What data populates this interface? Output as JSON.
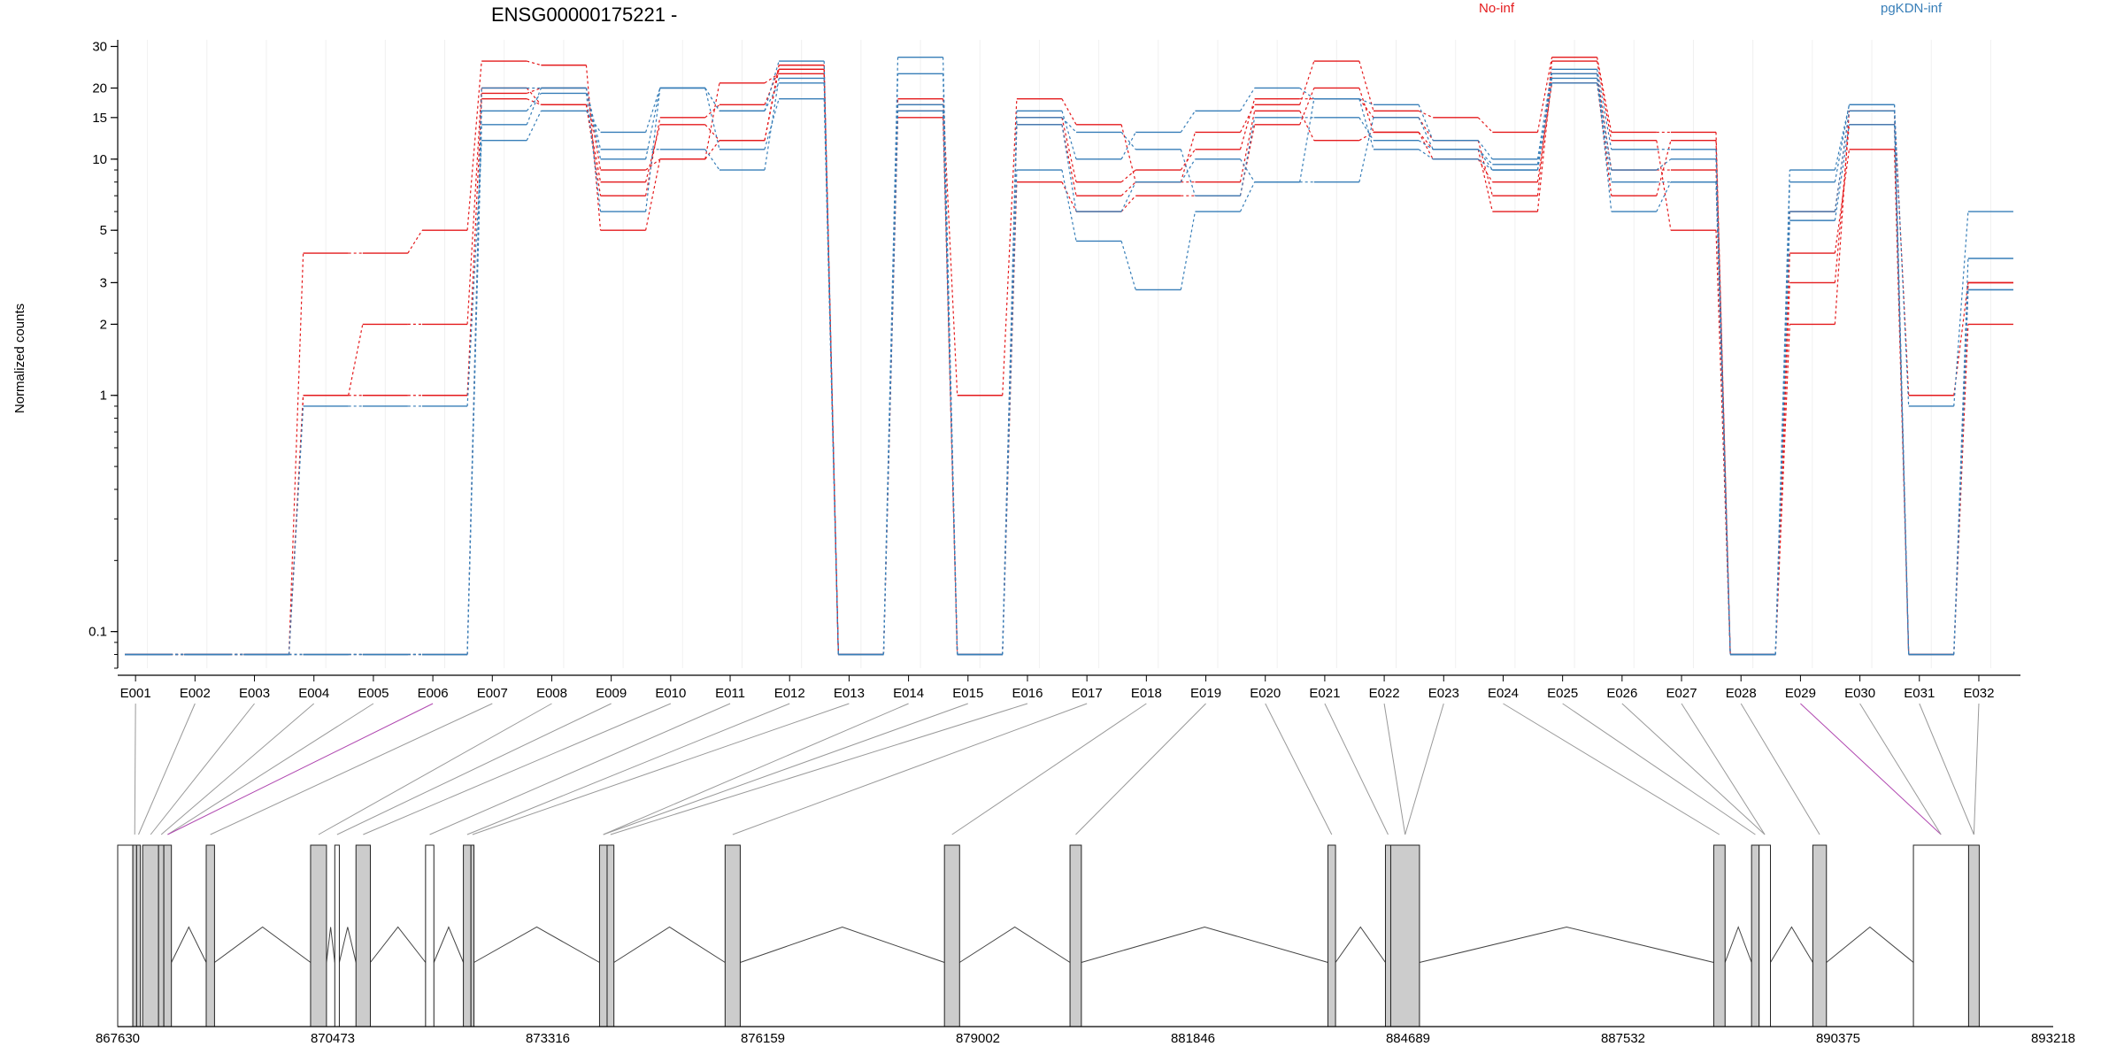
{
  "chart_data": {
    "type": "line",
    "title": "ENSG00000175221 -",
    "ylabel": "Normalized counts",
    "xlabel": "",
    "y_scale": "log",
    "ylim": [
      0.07,
      32
    ],
    "y_ticks": [
      {
        "value": 0.1,
        "label": "0.1"
      },
      {
        "value": 1,
        "label": "1"
      },
      {
        "value": 2,
        "label": "2"
      },
      {
        "value": 3,
        "label": "3"
      },
      {
        "value": 5,
        "label": "5"
      },
      {
        "value": 10,
        "label": "10"
      },
      {
        "value": 15,
        "label": "15"
      },
      {
        "value": 20,
        "label": "20"
      },
      {
        "value": 30,
        "label": "30"
      }
    ],
    "legend": [
      {
        "name": "No-inf",
        "color": "#e41a1c"
      },
      {
        "name": "pgKDN-inf",
        "color": "#377eb8"
      }
    ],
    "categories": [
      "E001",
      "E002",
      "E003",
      "E004",
      "E005",
      "E006",
      "E007",
      "E008",
      "E009",
      "E010",
      "E011",
      "E012",
      "E013",
      "E014",
      "E015",
      "E016",
      "E017",
      "E018",
      "E019",
      "E020",
      "E021",
      "E022",
      "E023",
      "E024",
      "E025",
      "E026",
      "E027",
      "E028",
      "E029",
      "E030",
      "E031",
      "E032"
    ],
    "series": [
      {
        "group": "No-inf",
        "color": "#e41a1c",
        "values": [
          0.08,
          0.08,
          0.08,
          4,
          4,
          5,
          26,
          25,
          5,
          10,
          12,
          25,
          0.08,
          18,
          1,
          18,
          14,
          8,
          13,
          17,
          26,
          16,
          15,
          13,
          27,
          13,
          13,
          0.08,
          6,
          16,
          1,
          3
        ]
      },
      {
        "group": "No-inf",
        "color": "#e41a1c",
        "values": [
          0.08,
          0.08,
          0.08,
          1,
          2,
          2,
          20,
          17,
          7,
          15,
          17,
          24,
          0.08,
          17,
          0.08,
          15,
          8,
          9,
          11,
          18,
          18,
          15,
          12,
          7,
          26,
          12,
          5,
          0.08,
          3,
          14,
          0.08,
          3
        ]
      },
      {
        "group": "No-inf",
        "color": "#e41a1c",
        "values": [
          0.08,
          0.08,
          0.08,
          1,
          1,
          1,
          18,
          17,
          8,
          14,
          12,
          24,
          0.08,
          16,
          0.08,
          14,
          7,
          8,
          8,
          16,
          12,
          13,
          11,
          6,
          23,
          9,
          9,
          0.08,
          4,
          11,
          0.08,
          2
        ]
      },
      {
        "group": "No-inf",
        "color": "#e41a1c",
        "values": [
          0.08,
          0.08,
          0.08,
          0.08,
          0.08,
          0.08,
          19,
          20,
          9,
          10,
          21,
          23,
          0.08,
          15,
          0.08,
          8,
          6,
          7,
          7,
          14,
          20,
          13,
          10,
          8,
          21,
          7,
          12,
          0.08,
          2,
          16,
          0.08,
          3
        ]
      },
      {
        "group": "pgKDN-inf",
        "color": "#377eb8",
        "values": [
          0.08,
          0.08,
          0.08,
          0.9,
          0.9,
          0.9,
          12,
          16,
          13,
          20,
          16,
          26,
          0.08,
          27,
          0.08,
          16,
          10,
          13,
          16,
          20,
          18,
          17,
          12,
          10,
          24,
          11,
          11,
          0.08,
          9,
          17,
          0.9,
          6
        ]
      },
      {
        "group": "pgKDN-inf",
        "color": "#377eb8",
        "values": [
          0.08,
          0.08,
          0.08,
          0.08,
          0.08,
          0.08,
          14,
          20,
          11,
          11,
          9,
          22,
          0.08,
          23,
          0.08,
          9,
          4.5,
          2.8,
          6,
          8,
          8,
          15,
          11,
          9,
          22,
          9,
          10,
          0.08,
          8,
          17,
          0.08,
          3.8
        ]
      },
      {
        "group": "pgKDN-inf",
        "color": "#377eb8",
        "values": [
          0.08,
          0.08,
          0.08,
          0.08,
          0.08,
          0.08,
          16,
          19,
          6,
          20,
          11,
          18,
          0.08,
          17,
          0.08,
          15,
          13,
          11,
          7,
          15,
          15,
          12,
          11,
          9.5,
          21,
          8,
          8,
          0.08,
          5.5,
          14,
          0.08,
          2.8
        ]
      },
      {
        "group": "pgKDN-inf",
        "color": "#377eb8",
        "values": [
          0.08,
          0.08,
          0.08,
          0.08,
          0.08,
          0.08,
          20,
          20,
          10,
          20,
          16,
          21,
          0.08,
          16,
          0.08,
          14,
          6,
          8,
          10,
          8,
          18,
          11,
          10,
          9,
          23,
          6,
          8,
          0.08,
          6,
          16,
          0.08,
          2.8
        ]
      }
    ],
    "genomic_axis": {
      "ticks": [
        "867630",
        "870473",
        "873316",
        "876159",
        "879002",
        "881846",
        "884689",
        "887532",
        "890375",
        "893218"
      ],
      "start": 867630,
      "end": 893218
    },
    "gene_model": {
      "features": [
        {
          "start": 867630,
          "end": 867830,
          "fill": "#ffffff"
        },
        {
          "start": 867830,
          "end": 867880,
          "fill": "#cccccc"
        },
        {
          "start": 867880,
          "end": 867930,
          "fill": "#cccccc"
        },
        {
          "start": 867960,
          "end": 868170,
          "fill": "#cccccc"
        },
        {
          "start": 868170,
          "end": 868240,
          "fill": "#cccccc"
        },
        {
          "start": 868240,
          "end": 868340,
          "fill": "#cccccc"
        },
        {
          "start": 868800,
          "end": 868910,
          "fill": "#cccccc"
        },
        {
          "start": 870180,
          "end": 870390,
          "fill": "#cccccc"
        },
        {
          "start": 870500,
          "end": 870560,
          "fill": "#ffffff"
        },
        {
          "start": 870780,
          "end": 870970,
          "fill": "#cccccc"
        },
        {
          "start": 871700,
          "end": 871810,
          "fill": "#ffffff"
        },
        {
          "start": 872200,
          "end": 872300,
          "fill": "#cccccc"
        },
        {
          "start": 872300,
          "end": 872340,
          "fill": "#cccccc"
        },
        {
          "start": 874000,
          "end": 874100,
          "fill": "#cccccc"
        },
        {
          "start": 874100,
          "end": 874190,
          "fill": "#cccccc"
        },
        {
          "start": 875660,
          "end": 875860,
          "fill": "#cccccc"
        },
        {
          "start": 878560,
          "end": 878760,
          "fill": "#cccccc"
        },
        {
          "start": 880220,
          "end": 880370,
          "fill": "#cccccc"
        },
        {
          "start": 883630,
          "end": 883730,
          "fill": "#cccccc"
        },
        {
          "start": 884390,
          "end": 884460,
          "fill": "#cccccc"
        },
        {
          "start": 884460,
          "end": 884840,
          "fill": "#cccccc"
        },
        {
          "start": 888730,
          "end": 888880,
          "fill": "#cccccc"
        },
        {
          "start": 889230,
          "end": 889330,
          "fill": "#cccccc"
        },
        {
          "start": 889330,
          "end": 889480,
          "fill": "#ffffff"
        },
        {
          "start": 890040,
          "end": 890220,
          "fill": "#cccccc"
        },
        {
          "start": 891370,
          "end": 892100,
          "fill": "#ffffff"
        },
        {
          "start": 892100,
          "end": 892240,
          "fill": "#cccccc"
        }
      ],
      "exon_feature_index": [
        1,
        2,
        3,
        4,
        5,
        5,
        6,
        7,
        8,
        9,
        10,
        11,
        12,
        13,
        13,
        14,
        15,
        16,
        17,
        18,
        19,
        20,
        20,
        21,
        22,
        23,
        23,
        24,
        25,
        25,
        26,
        26
      ]
    },
    "grid": true
  }
}
